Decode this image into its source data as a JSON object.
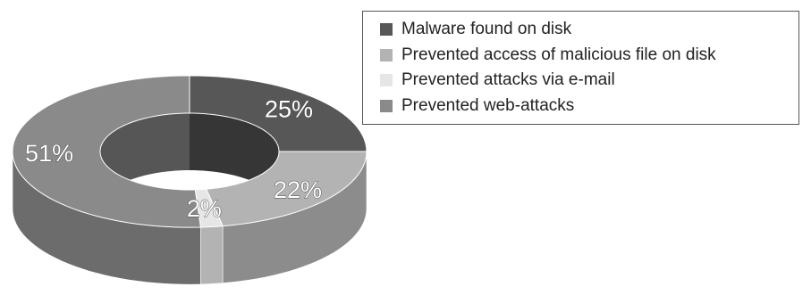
{
  "chart_data": {
    "type": "pie",
    "style": "3d-donut",
    "title": "",
    "categories": [
      "Malware found on disk",
      "Prevented access of malicious file on disk",
      "Prevented attacks via e-mail",
      "Prevented web-attacks"
    ],
    "values": [
      25,
      22,
      2,
      51
    ],
    "value_labels": [
      "25%",
      "22%",
      "2%",
      "51%"
    ],
    "colors": [
      "#575757",
      "#b3b3b3",
      "#e6e6e6",
      "#8a8a8a"
    ],
    "legend_position": "top-right",
    "legend": [
      {
        "label": "Malware found on disk",
        "color": "#575757"
      },
      {
        "label": "Prevented access of malicious file on disk",
        "color": "#b3b3b3"
      },
      {
        "label": "Prevented attacks via e-mail",
        "color": "#e6e6e6"
      },
      {
        "label": "Prevented web-attacks",
        "color": "#8a8a8a"
      }
    ]
  }
}
